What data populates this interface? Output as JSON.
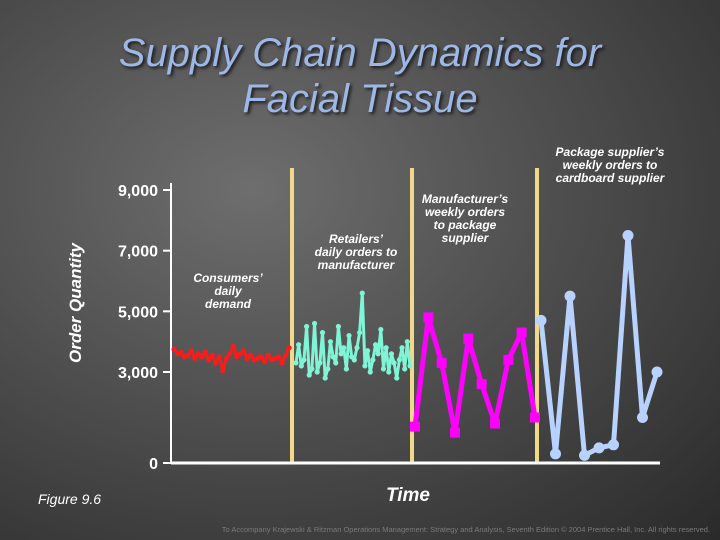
{
  "title_line1": "Supply Chain Dynamics for",
  "title_line2": "Facial Tissue",
  "figure_label": "Figure 9.6",
  "copyright": "To Accompany Krajewski & Ritzman Operations Management: Strategy and Analysis, Seventh Edition © 2004 Prentice Hall, Inc. All rights reserved.",
  "colors": {
    "title": "#9db7e6",
    "consumers": "#ff1a1a",
    "retailers": "#7ff5d5",
    "manufacturer": "#ff00ff",
    "package_supplier": "#b8d2ff",
    "divider": "#f2d98a",
    "axis": "#ffffff"
  },
  "chart_data": {
    "type": "line",
    "xlabel": "Time",
    "ylabel": "Order Quantity",
    "ylim": [
      0,
      9000
    ],
    "yticks": [
      {
        "value": 9000,
        "label": "9,000"
      },
      {
        "value": 7000,
        "label": "7,000"
      },
      {
        "value": 5000,
        "label": "5,000"
      },
      {
        "value": 3000,
        "label": "3,000"
      },
      {
        "value": 0,
        "label": "0"
      }
    ],
    "grid": false,
    "series": [
      {
        "name": "Consumers' daily demand",
        "annotation_lines": [
          "Consumers’",
          "daily",
          "demand"
        ],
        "key": "consumers",
        "values": [
          3750,
          3600,
          3650,
          3500,
          3550,
          3700,
          3450,
          3600,
          3500,
          3650,
          3400,
          3550,
          3300,
          3500,
          3050,
          3450,
          3600,
          3850,
          3500,
          3600,
          3700,
          3450,
          3550,
          3400,
          3450,
          3500,
          3350,
          3550,
          3400,
          3450,
          3500,
          3300,
          3550,
          3800
        ]
      },
      {
        "name": "Retailers' daily orders to manufacturer",
        "annotation_lines": [
          "Retailers’",
          "daily orders to",
          "manufacturer"
        ],
        "key": "retailers",
        "values": [
          3300,
          3900,
          3200,
          3400,
          4500,
          2900,
          3100,
          4600,
          3000,
          3300,
          4300,
          2800,
          3100,
          4000,
          3500,
          3300,
          4500,
          3600,
          3800,
          3100,
          4200,
          3500,
          3400,
          3800,
          4300,
          5600,
          3200,
          3700,
          3000,
          3400,
          3900,
          3600,
          4400,
          3100,
          3800,
          3000,
          3600,
          3300,
          2800,
          3400,
          3800,
          3100,
          4000,
          3200
        ]
      },
      {
        "name": "Manufacturer's weekly orders to package supplier",
        "annotation_lines": [
          "Manufacturer’s",
          "weekly orders",
          "to package",
          "supplier"
        ],
        "key": "manufacturer",
        "values": [
          1200,
          4800,
          3300,
          1000,
          4100,
          2600,
          1300,
          3400,
          4300,
          1500
        ]
      },
      {
        "name": "Package supplier's weekly orders to cardboard supplier",
        "annotation_lines": [
          "Package supplier’s",
          "weekly orders to",
          "cardboard supplier"
        ],
        "key": "package_supplier",
        "values": [
          4700,
          300,
          5500,
          250,
          500,
          600,
          7500,
          1500,
          3000
        ]
      }
    ]
  }
}
